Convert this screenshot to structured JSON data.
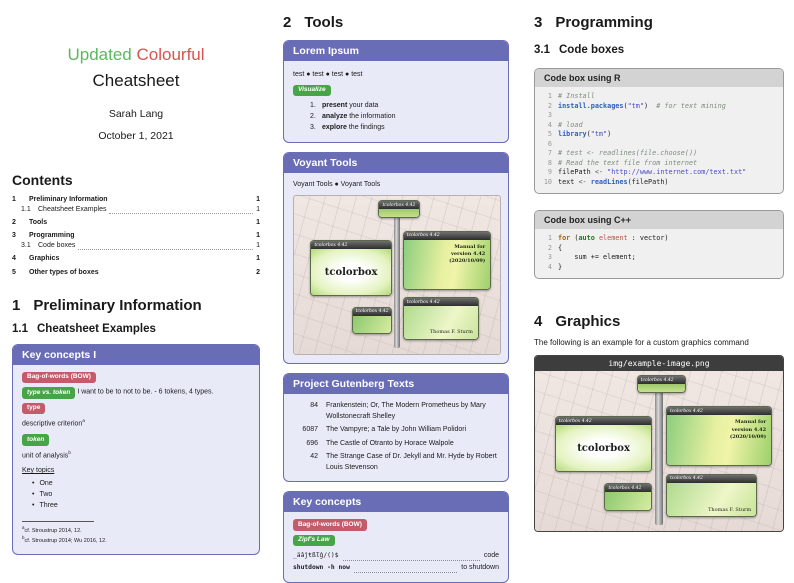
{
  "colors": {
    "accent_purple": "#696db6",
    "box_body": "#e9eaf8",
    "badge_red": "#c35b6a",
    "badge_green": "#47a447",
    "title_green": "#5cb85c",
    "title_red": "#d9534f",
    "code_box_bg": "#f0f0f0",
    "code_box_header": "#d3d3d3",
    "img_header_bg": "#3d3d3d"
  },
  "col1": {
    "title_word1": "Updated",
    "title_word2": "Colourful",
    "title_line2": "Cheatsheet",
    "author": "Sarah Lang",
    "date": "October 1, 2021",
    "contents_heading": "Contents",
    "toc": [
      {
        "num": "1",
        "label": "Preliminary Information",
        "page": "1"
      },
      {
        "num": "1.1",
        "label": "Cheatsheet Examples",
        "page": "1"
      },
      {
        "num": "2",
        "label": "Tools",
        "page": "1"
      },
      {
        "num": "3",
        "label": "Programming",
        "page": "1"
      },
      {
        "num": "3.1",
        "label": "Code boxes",
        "page": "1"
      },
      {
        "num": "4",
        "label": "Graphics",
        "page": "1"
      },
      {
        "num": "5",
        "label": "Other types of boxes",
        "page": "2"
      }
    ],
    "section1_num": "1",
    "section1_title": "Preliminary Information",
    "subsection11_num": "1.1",
    "subsection11_title": "Cheatsheet Examples",
    "key_concepts_box": {
      "title": "Key concepts I",
      "badge_bow": "Bag-of-words (BOW)",
      "badge_type_vs_token": "type vs. token",
      "type_vs_token_text": "I want to be to not to be. - 6 tokens, 4 types.",
      "badge_type": "type",
      "type_desc": "descriptive criterion",
      "type_footnote_mark": "a",
      "badge_token": "token",
      "token_desc": "unit of analysis",
      "token_footnote_mark": "b",
      "key_topics_label": "Key topics",
      "topics": [
        "One",
        "Two",
        "Three"
      ],
      "footnotes": [
        {
          "mark": "a",
          "text": "cf. Stroustrup 2014, 12."
        },
        {
          "mark": "b",
          "text": "cf. Stroustrup 2014; Wu 2016, 12."
        }
      ]
    }
  },
  "col2": {
    "section2_num": "2",
    "section2_title": "Tools",
    "lorem_box": {
      "title": "Lorem Ipsum",
      "test_items": [
        "test",
        "test",
        "test",
        "test"
      ],
      "badge_visualize": "Visualize",
      "steps": [
        {
          "num": "1.",
          "bold": "present",
          "rest": " your data"
        },
        {
          "num": "2.",
          "bold": "analyze",
          "rest": " the information"
        },
        {
          "num": "3.",
          "bold": "explore",
          "rest": " the findings"
        }
      ]
    },
    "voyant_box": {
      "title": "Voyant Tools",
      "items": [
        "Voyant Tools",
        "Voyant Tools"
      ]
    },
    "gutenberg_box": {
      "title": "Project Gutenberg Texts",
      "rows": [
        {
          "id": "84",
          "title": "Frankenstein; Or, The Modern Prometheus by Mary Wollstonecraft Shelley"
        },
        {
          "id": "6087",
          "title": "The Vampyre; a Tale by John William Polidori"
        },
        {
          "id": "696",
          "title": "The Castle of Otranto by Horace Walpole"
        },
        {
          "id": "42",
          "title": "The Strange Case of Dr. Jekyll and Mr. Hyde by Robert Louis Stevenson"
        }
      ]
    },
    "key_concepts_box": {
      "title": "Key concepts",
      "badge_bow": "Bag-of-words (BOW)",
      "badge_zipf": "Zipf's Law",
      "dict_rows": [
        {
          "term": "_äâĵŧßľĝ/()$",
          "def": "code"
        },
        {
          "term": "shutdown -h now",
          "def": "to shutdown"
        }
      ]
    }
  },
  "col3": {
    "section3_num": "3",
    "section3_title": "Programming",
    "subsection31_num": "3.1",
    "subsection31_title": "Code boxes",
    "r_box": {
      "title": "Code box using R",
      "lines": [
        {
          "no": "1",
          "segs": [
            {
              "t": "# Install",
              "c": "com"
            }
          ]
        },
        {
          "no": "2",
          "segs": [
            {
              "t": "install.packages",
              "c": "fn"
            },
            {
              "t": "(",
              "c": ""
            },
            {
              "t": "\"tm\"",
              "c": "str"
            },
            {
              "t": ")",
              "c": ""
            },
            {
              "t": "  ",
              "c": ""
            },
            {
              "t": "# for text mining",
              "c": "com"
            }
          ]
        },
        {
          "no": "3",
          "segs": []
        },
        {
          "no": "4",
          "segs": [
            {
              "t": "# load",
              "c": "com"
            }
          ]
        },
        {
          "no": "5",
          "segs": [
            {
              "t": "library",
              "c": "fn"
            },
            {
              "t": "(",
              "c": ""
            },
            {
              "t": "\"tm\"",
              "c": "str"
            },
            {
              "t": ")",
              "c": ""
            }
          ]
        },
        {
          "no": "6",
          "segs": []
        },
        {
          "no": "7",
          "segs": [
            {
              "t": "# test <- readlines(file.choose())",
              "c": "com"
            }
          ]
        },
        {
          "no": "8",
          "segs": [
            {
              "t": "# Read the text file from internet",
              "c": "com"
            }
          ]
        },
        {
          "no": "9",
          "segs": [
            {
              "t": "filePath ",
              "c": ""
            },
            {
              "t": "<-",
              "c": "op"
            },
            {
              "t": " ",
              "c": ""
            },
            {
              "t": "\"http://www.internet.com/text.txt\"",
              "c": "str"
            }
          ]
        },
        {
          "no": "10",
          "segs": [
            {
              "t": "text ",
              "c": ""
            },
            {
              "t": "<-",
              "c": "op"
            },
            {
              "t": " ",
              "c": ""
            },
            {
              "t": "readLines",
              "c": "fn"
            },
            {
              "t": "(filePath)",
              "c": ""
            }
          ]
        }
      ]
    },
    "cpp_box": {
      "title": "Code box using C++",
      "lines": [
        {
          "no": "1",
          "segs": [
            {
              "t": "for",
              "c": "kw"
            },
            {
              "t": " (",
              "c": ""
            },
            {
              "t": "auto",
              "c": "kw2"
            },
            {
              "t": " ",
              "c": ""
            },
            {
              "t": "element",
              "c": "var"
            },
            {
              "t": " : vector)",
              "c": ""
            }
          ]
        },
        {
          "no": "2",
          "segs": [
            {
              "t": "{",
              "c": ""
            }
          ]
        },
        {
          "no": "3",
          "segs": [
            {
              "t": "    sum += element;",
              "c": ""
            }
          ]
        },
        {
          "no": "4",
          "segs": [
            {
              "t": "}",
              "c": ""
            }
          ]
        }
      ]
    },
    "section4_num": "4",
    "section4_title": "Graphics",
    "graphics_intro": "The following is an example for a custom graphics command",
    "image_box": {
      "path_label": "img/example-image.png"
    }
  },
  "tcb_image": {
    "header_label": "tcolorbox 4.42",
    "left_box_text": "tcolorbox",
    "right_box_text": "Manual for version 4.42 (2020/10/09)",
    "bottom_right_text": "Thomas F. Sturm"
  }
}
